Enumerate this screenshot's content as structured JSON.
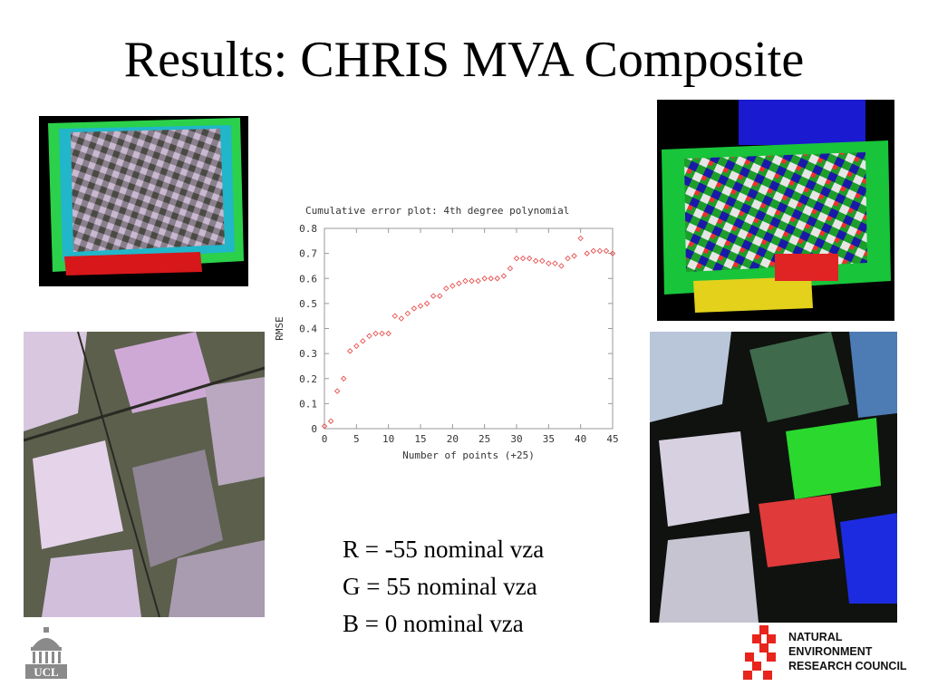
{
  "slide": {
    "title": "Results: CHRIS MVA Composite",
    "legend_lines": [
      "R = -55 nominal vza",
      "G = 55 nominal vza",
      "B = 0 nominal vza"
    ],
    "ucl_logo_text": "UCL",
    "nerc_logo_lines": [
      "NATURAL",
      "ENVIRONMENT",
      "RESEARCH COUNCIL"
    ],
    "colors": {
      "marker": "#e85050",
      "nerc_red": "#e8241c",
      "ucl_grey": "#8a8a8a"
    }
  },
  "chart_data": {
    "type": "scatter",
    "title": "Cumulative error plot: 4th degree polynomial",
    "xlabel": "Number of points (+25)",
    "ylabel": "RMSE",
    "xlim": [
      0,
      45
    ],
    "ylim": [
      0,
      0.8
    ],
    "xticks": [
      0,
      5,
      10,
      15,
      20,
      25,
      30,
      35,
      40,
      45
    ],
    "yticks": [
      0,
      0.1,
      0.2,
      0.3,
      0.4,
      0.5,
      0.6,
      0.7,
      0.8
    ],
    "ytick_labels": [
      "0",
      "0.1",
      "0.2",
      "0.3",
      "0.4",
      "0.5",
      "0.6",
      "0.7",
      "0.8"
    ],
    "grid": false,
    "x": [
      0,
      1,
      2,
      3,
      4,
      5,
      6,
      7,
      8,
      9,
      10,
      11,
      12,
      13,
      14,
      15,
      16,
      17,
      18,
      19,
      20,
      21,
      22,
      23,
      24,
      25,
      26,
      27,
      28,
      29,
      30,
      31,
      32,
      33,
      34,
      35,
      36,
      37,
      38,
      39,
      40,
      41,
      42,
      43,
      44,
      45
    ],
    "y": [
      0.01,
      0.03,
      0.15,
      0.2,
      0.31,
      0.33,
      0.35,
      0.37,
      0.38,
      0.38,
      0.38,
      0.45,
      0.44,
      0.46,
      0.48,
      0.49,
      0.5,
      0.53,
      0.53,
      0.56,
      0.57,
      0.58,
      0.59,
      0.59,
      0.59,
      0.6,
      0.6,
      0.6,
      0.61,
      0.64,
      0.68,
      0.68,
      0.68,
      0.67,
      0.67,
      0.66,
      0.66,
      0.65,
      0.68,
      0.69,
      0.76,
      0.7,
      0.71,
      0.71,
      0.71,
      0.7
    ]
  }
}
